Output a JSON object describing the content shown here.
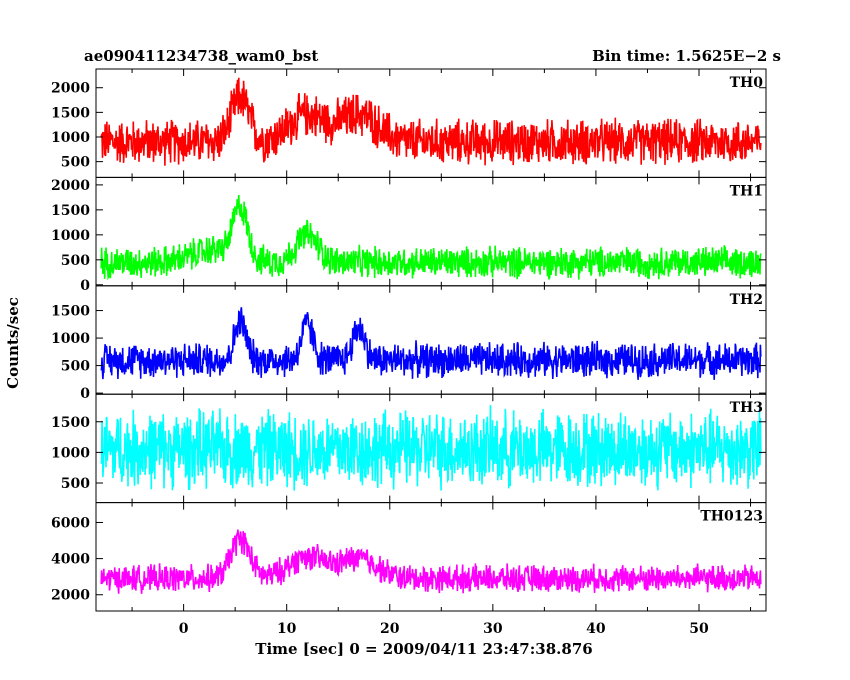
{
  "header": {
    "title": "ae090411234738_wam0_bst",
    "bin_time": "Bin time: 1.5625E−2 s"
  },
  "chart_data": {
    "type": "line",
    "xlabel": "Time [sec] 0 = 2009/04/11 23:47:38.876",
    "ylabel": "Counts/sec",
    "xlim": [
      -8.5,
      56.5
    ],
    "x_ticks": [
      0,
      10,
      20,
      30,
      40,
      50
    ],
    "x_range_data": [
      -8,
      56
    ],
    "panels": [
      {
        "label": "TH0",
        "color": "#ff0000",
        "ylim": [
          180,
          2380
        ],
        "yticks": [
          500,
          1000,
          1500,
          2000
        ],
        "baseline": 900,
        "amplitude": 380,
        "bursts": [
          {
            "t": 5.5,
            "w": 1.2,
            "a": 900
          },
          {
            "t": 12,
            "w": 2.5,
            "a": 550
          },
          {
            "t": 17,
            "w": 2.5,
            "a": 550
          }
        ],
        "x": [
          -8,
          0,
          5,
          5.5,
          6,
          10,
          12,
          15,
          17,
          20,
          30,
          40,
          50,
          56
        ],
        "y": [
          850,
          900,
          1300,
          1900,
          1400,
          1100,
          1550,
          1200,
          1550,
          900,
          850,
          830,
          820,
          820
        ]
      },
      {
        "label": "TH1",
        "color": "#00ff00",
        "ylim": [
          -20,
          2150
        ],
        "yticks": [
          0,
          500,
          1000,
          1500,
          2000
        ],
        "baseline": 450,
        "amplitude": 260,
        "bursts": [
          {
            "t": 5.5,
            "w": 1.0,
            "a": 1000
          },
          {
            "t": 12,
            "w": 1.5,
            "a": 550
          },
          {
            "t": 3,
            "w": 3,
            "a": 250
          }
        ],
        "x": [
          -8,
          0,
          5,
          5.5,
          6,
          10,
          12,
          15,
          17,
          20,
          30,
          40,
          50,
          56
        ],
        "y": [
          430,
          600,
          800,
          1600,
          1000,
          650,
          1100,
          700,
          650,
          450,
          430,
          420,
          420,
          420
        ]
      },
      {
        "label": "TH2",
        "color": "#0000ff",
        "ylim": [
          -20,
          1950
        ],
        "yticks": [
          0,
          500,
          1000,
          1500
        ],
        "baseline": 600,
        "amplitude": 260,
        "bursts": [
          {
            "t": 5.5,
            "w": 0.8,
            "a": 700
          },
          {
            "t": 12,
            "w": 0.8,
            "a": 650
          },
          {
            "t": 17,
            "w": 0.8,
            "a": 600
          }
        ],
        "x": [
          -8,
          0,
          5,
          5.5,
          6,
          10,
          12,
          15,
          17,
          20,
          30,
          40,
          50,
          56
        ],
        "y": [
          600,
          620,
          650,
          1200,
          700,
          620,
          1150,
          620,
          1100,
          600,
          590,
          590,
          580,
          580
        ]
      },
      {
        "label": "TH3",
        "color": "#00ffff",
        "ylim": [
          180,
          1950
        ],
        "yticks": [
          500,
          1000,
          1500
        ],
        "baseline": 1050,
        "amplitude": 520,
        "bursts": [],
        "x": [
          -8,
          0,
          10,
          20,
          30,
          40,
          50,
          56
        ],
        "y": [
          1050,
          1050,
          1050,
          1050,
          1050,
          1050,
          1050,
          1050
        ]
      },
      {
        "label": "TH0123",
        "color": "#ff00ff",
        "ylim": [
          1100,
          7100
        ],
        "yticks": [
          2000,
          4000,
          6000
        ],
        "baseline": 2900,
        "amplitude": 620,
        "bursts": [
          {
            "t": 5.5,
            "w": 1.3,
            "a": 2200
          },
          {
            "t": 12,
            "w": 2.5,
            "a": 1200
          },
          {
            "t": 17,
            "w": 2.5,
            "a": 1100
          }
        ],
        "x": [
          -8,
          0,
          5,
          5.5,
          6,
          10,
          12,
          15,
          17,
          20,
          30,
          40,
          50,
          56
        ],
        "y": [
          2900,
          3000,
          3800,
          5200,
          4200,
          3500,
          4100,
          3400,
          4000,
          3000,
          2900,
          2850,
          2850,
          2850
        ]
      }
    ]
  }
}
